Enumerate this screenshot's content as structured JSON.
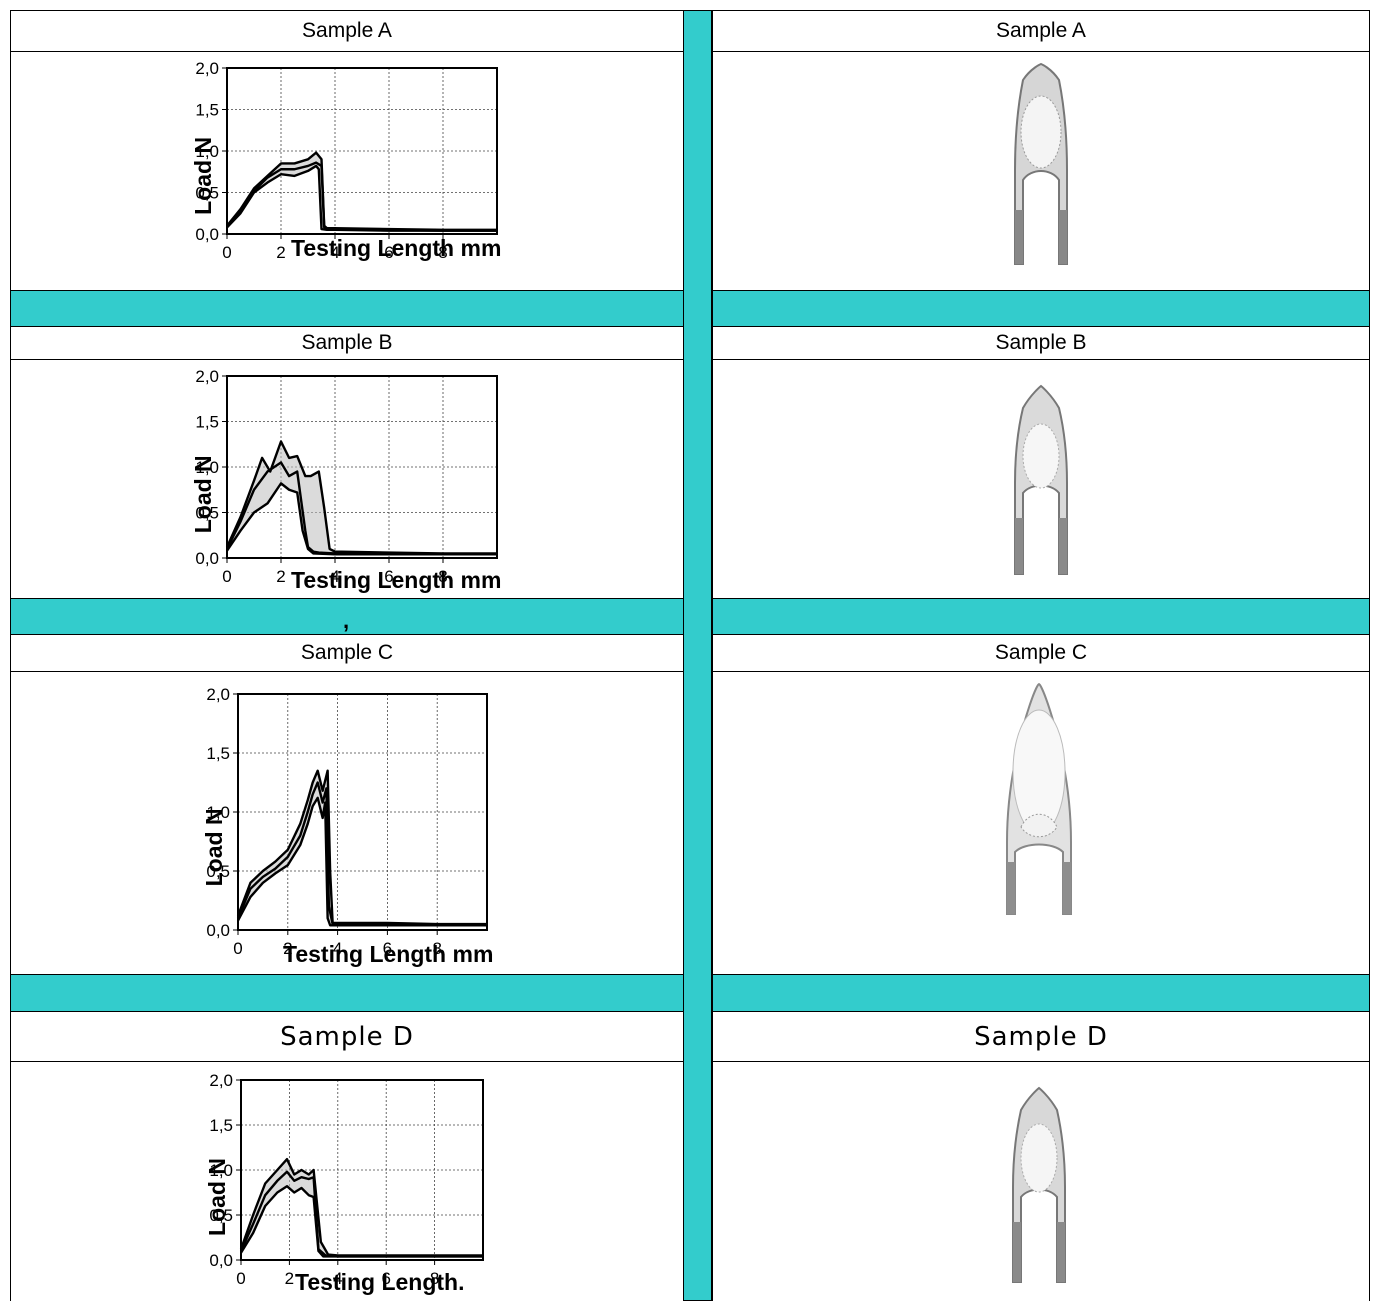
{
  "panels": [
    {
      "left_header": "Sample A",
      "right_header": "Sample A"
    },
    {
      "left_header": "Sample B",
      "right_header": "Sample B"
    },
    {
      "left_header": "Sample C",
      "right_header": "Sample C"
    },
    {
      "left_header": "Sample D",
      "right_header": "Sample D"
    }
  ],
  "separator_mark": ",",
  "colors": {
    "separator": "#33cccc",
    "curve": "#000000",
    "band": "#bdbdbd"
  },
  "chart_data": [
    {
      "type": "line",
      "title": "",
      "xlabel": "Testing Length mm",
      "ylabel": "Load N",
      "xlim": [
        0,
        10
      ],
      "ylim": [
        0,
        2
      ],
      "x_ticks": [
        "0",
        "2",
        "4",
        "6",
        "8"
      ],
      "y_ticks": [
        "0,0",
        "0,5",
        "1,0",
        "1,5",
        "2,0"
      ],
      "grid": true,
      "series": [
        {
          "x": [
            0,
            0.5,
            1,
            1.5,
            2,
            2.5,
            3,
            3.3,
            3.5,
            3.6,
            3.7,
            4,
            6,
            8,
            10
          ],
          "values": [
            0.1,
            0.3,
            0.55,
            0.7,
            0.85,
            0.85,
            0.9,
            0.98,
            0.9,
            0.1,
            0.07,
            0.07,
            0.06,
            0.05,
            0.05
          ]
        },
        {
          "x": [
            0,
            0.5,
            1,
            1.5,
            2,
            2.5,
            3,
            3.3,
            3.5,
            3.6,
            3.7,
            4,
            6,
            8,
            10
          ],
          "values": [
            0.1,
            0.28,
            0.52,
            0.68,
            0.78,
            0.78,
            0.82,
            0.86,
            0.82,
            0.08,
            0.06,
            0.06,
            0.05,
            0.04,
            0.04
          ]
        },
        {
          "x": [
            0,
            0.5,
            1,
            1.5,
            2,
            2.5,
            3,
            3.3,
            3.4,
            3.5,
            3.7,
            4,
            6,
            8,
            10
          ],
          "values": [
            0.08,
            0.25,
            0.5,
            0.62,
            0.72,
            0.7,
            0.76,
            0.82,
            0.78,
            0.06,
            0.05,
            0.05,
            0.04,
            0.04,
            0.04
          ]
        }
      ]
    },
    {
      "type": "line",
      "title": "",
      "xlabel": "Testing Length mm",
      "ylabel": "Load N",
      "xlim": [
        0,
        10
      ],
      "ylim": [
        0,
        2
      ],
      "x_ticks": [
        "0",
        "2",
        "4",
        "6",
        "8"
      ],
      "y_ticks": [
        "0,0",
        "0,5",
        "1,0",
        "1,5",
        "2,0"
      ],
      "grid": true,
      "series": [
        {
          "x": [
            0,
            0.5,
            1,
            1.3,
            1.6,
            2,
            2.3,
            2.6,
            2.9,
            3.1,
            3.4,
            3.6,
            3.8,
            4,
            6,
            8,
            10
          ],
          "values": [
            0.12,
            0.45,
            0.85,
            1.1,
            0.95,
            1.28,
            1.1,
            1.12,
            0.9,
            0.9,
            0.95,
            0.55,
            0.1,
            0.07,
            0.06,
            0.05,
            0.05
          ]
        },
        {
          "x": [
            0,
            0.5,
            1,
            1.5,
            2,
            2.3,
            2.6,
            2.9,
            3,
            3.2,
            3.4,
            4,
            6,
            8,
            10
          ],
          "values": [
            0.1,
            0.4,
            0.75,
            0.95,
            1.05,
            0.9,
            0.95,
            0.3,
            0.12,
            0.07,
            0.06,
            0.05,
            0.05,
            0.04,
            0.04
          ]
        },
        {
          "x": [
            0,
            0.5,
            1,
            1.5,
            2,
            2.3,
            2.6,
            2.8,
            3,
            3.2,
            4,
            6,
            8,
            10
          ],
          "values": [
            0.08,
            0.3,
            0.5,
            0.6,
            0.82,
            0.75,
            0.72,
            0.3,
            0.1,
            0.05,
            0.04,
            0.04,
            0.04,
            0.04
          ]
        }
      ]
    },
    {
      "type": "line",
      "title": "",
      "xlabel": "Testing Length mm",
      "ylabel": "Load N",
      "xlim": [
        0,
        10
      ],
      "ylim": [
        0,
        2
      ],
      "x_ticks": [
        "0",
        "2",
        "4",
        "6",
        "8"
      ],
      "y_ticks": [
        "0,0",
        "0,5",
        "1,0",
        "1,5",
        "2,0"
      ],
      "grid": true,
      "series": [
        {
          "x": [
            0,
            0.5,
            1,
            1.5,
            2,
            2.5,
            2.8,
            3,
            3.2,
            3.4,
            3.6,
            3.7,
            3.8,
            4,
            6,
            8,
            10
          ],
          "values": [
            0.12,
            0.4,
            0.5,
            0.58,
            0.68,
            0.9,
            1.1,
            1.25,
            1.35,
            1.18,
            1.35,
            0.5,
            0.06,
            0.06,
            0.06,
            0.05,
            0.05
          ]
        },
        {
          "x": [
            0,
            0.5,
            1,
            1.5,
            2,
            2.5,
            2.8,
            3,
            3.2,
            3.4,
            3.55,
            3.65,
            3.8,
            4,
            6,
            8,
            10
          ],
          "values": [
            0.1,
            0.35,
            0.45,
            0.52,
            0.62,
            0.8,
            1.0,
            1.15,
            1.25,
            1.08,
            1.2,
            0.2,
            0.05,
            0.05,
            0.05,
            0.04,
            0.04
          ]
        },
        {
          "x": [
            0,
            0.5,
            1,
            1.5,
            2,
            2.5,
            2.8,
            3,
            3.2,
            3.4,
            3.5,
            3.6,
            3.7,
            4,
            6,
            8,
            10
          ],
          "values": [
            0.08,
            0.28,
            0.4,
            0.48,
            0.55,
            0.72,
            0.9,
            1.05,
            1.12,
            0.95,
            1.08,
            0.1,
            0.04,
            0.04,
            0.04,
            0.04,
            0.04
          ]
        }
      ]
    },
    {
      "type": "line",
      "title": "",
      "xlabel": "Testing Length.",
      "ylabel": "Load N",
      "xlim": [
        0,
        10
      ],
      "ylim": [
        0,
        2
      ],
      "x_ticks": [
        "0",
        "2",
        "4",
        "6",
        "8"
      ],
      "y_ticks": [
        "0,0",
        "0,5",
        "1,0",
        "1,5",
        "2,0"
      ],
      "grid": true,
      "series": [
        {
          "x": [
            0,
            0.5,
            1,
            1.5,
            1.9,
            2.2,
            2.5,
            2.8,
            3,
            3.3,
            3.6,
            4,
            6,
            8,
            10
          ],
          "values": [
            0.12,
            0.5,
            0.85,
            1.0,
            1.12,
            0.95,
            1.0,
            0.95,
            1.0,
            0.2,
            0.06,
            0.05,
            0.05,
            0.05,
            0.05
          ]
        },
        {
          "x": [
            0,
            0.5,
            1,
            1.5,
            1.9,
            2.2,
            2.5,
            2.8,
            3,
            3.2,
            3.5,
            4,
            6,
            8,
            10
          ],
          "values": [
            0.1,
            0.4,
            0.72,
            0.88,
            0.98,
            0.88,
            0.92,
            0.9,
            0.92,
            0.12,
            0.05,
            0.04,
            0.04,
            0.04,
            0.04
          ]
        },
        {
          "x": [
            0,
            0.5,
            1,
            1.5,
            1.9,
            2.2,
            2.5,
            2.8,
            3,
            3.2,
            3.4,
            4,
            6,
            8,
            10
          ],
          "values": [
            0.08,
            0.3,
            0.6,
            0.75,
            0.82,
            0.75,
            0.8,
            0.72,
            0.7,
            0.1,
            0.04,
            0.04,
            0.04,
            0.04,
            0.04
          ]
        }
      ]
    }
  ]
}
